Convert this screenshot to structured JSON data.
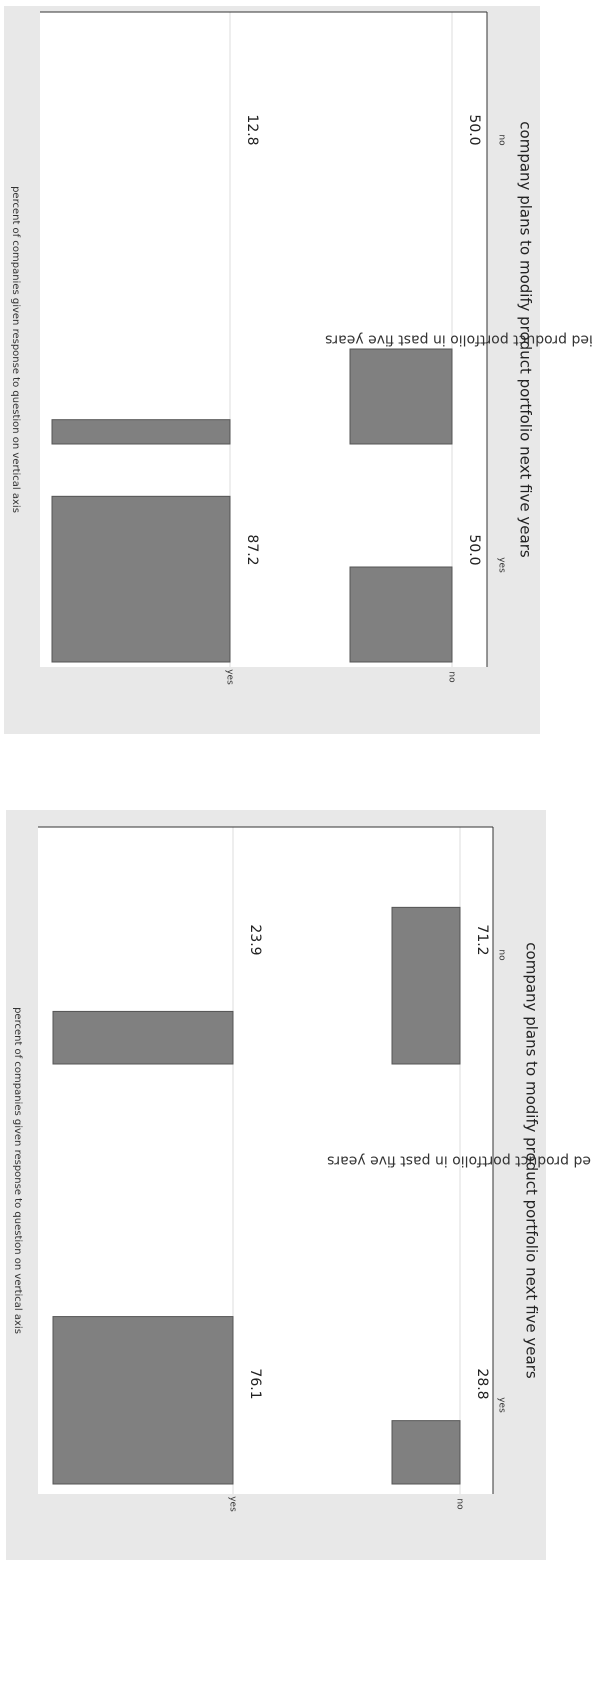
{
  "chart_data": [
    {
      "type": "bar",
      "title": "",
      "note": "percent of companies given response to question on vertical axis",
      "ylabel": "company has modified product portfolio in past five years",
      "xlabel": "company plans to modify product portfolio next five years",
      "y_categories": [
        "yes",
        "no"
      ],
      "x_categories": [
        "yes",
        "no"
      ],
      "series": [
        {
          "y_category": "yes",
          "values": [
            87.2,
            12.8
          ]
        },
        {
          "y_category": "no",
          "values": [
            50.0,
            50.0
          ]
        }
      ],
      "value_labels": [
        [
          "87.2",
          "12.8"
        ],
        [
          "50.0",
          "50.0"
        ]
      ],
      "xlim": [
        0,
        100
      ],
      "grid": true,
      "orientation": "rotated 90 degrees clockwise"
    },
    {
      "type": "bar",
      "title": "",
      "note": "percent of companies given response to question on vertical axis",
      "ylabel": "company has modified product portfolio in past five years",
      "xlabel": "company plans to modify product portfolio next five years",
      "y_categories": [
        "yes",
        "no"
      ],
      "x_categories": [
        "yes",
        "no"
      ],
      "series": [
        {
          "y_category": "yes",
          "values": [
            76.1,
            23.9
          ]
        },
        {
          "y_category": "no",
          "values": [
            28.8,
            71.2
          ]
        }
      ],
      "value_labels": [
        [
          "76.1",
          "23.9"
        ],
        [
          "28.8",
          "71.2"
        ]
      ],
      "xlim": [
        0,
        100
      ],
      "grid": true,
      "orientation": "rotated 90 degrees clockwise"
    }
  ]
}
